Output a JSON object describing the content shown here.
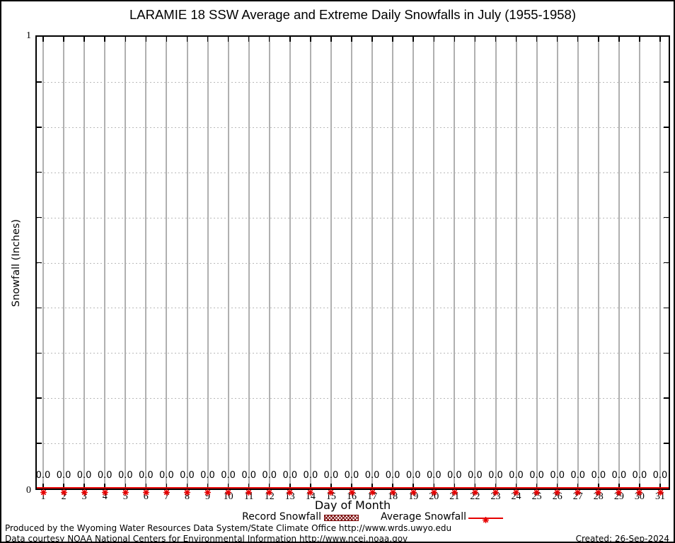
{
  "title": "LARAMIE 18 SSW Average and Extreme Daily Snowfalls in July (1955-1958)",
  "chart_data": {
    "type": "line",
    "title": "LARAMIE 18 SSW Average and Extreme Daily Snowfalls in July (1955-1958)",
    "xlabel": "Day of Month",
    "ylabel": "Snowfall (Inches)",
    "x": [
      1,
      2,
      3,
      4,
      5,
      6,
      7,
      8,
      9,
      10,
      11,
      12,
      13,
      14,
      15,
      16,
      17,
      18,
      19,
      20,
      21,
      22,
      23,
      24,
      25,
      26,
      27,
      28,
      29,
      30,
      31
    ],
    "series": [
      {
        "name": "Record Snowfall",
        "style": "hatched-box",
        "color": "#7f1010",
        "values": [
          0.0,
          0.0,
          0.0,
          0.0,
          0.0,
          0.0,
          0.0,
          0.0,
          0.0,
          0.0,
          0.0,
          0.0,
          0.0,
          0.0,
          0.0,
          0.0,
          0.0,
          0.0,
          0.0,
          0.0,
          0.0,
          0.0,
          0.0,
          0.0,
          0.0,
          0.0,
          0.0,
          0.0,
          0.0,
          0.0,
          0.0
        ]
      },
      {
        "name": "Average Snowfall",
        "style": "line-with-points",
        "color": "#e60000",
        "values": [
          0.0,
          0.0,
          0.0,
          0.0,
          0.0,
          0.0,
          0.0,
          0.0,
          0.0,
          0.0,
          0.0,
          0.0,
          0.0,
          0.0,
          0.0,
          0.0,
          0.0,
          0.0,
          0.0,
          0.0,
          0.0,
          0.0,
          0.0,
          0.0,
          0.0,
          0.0,
          0.0,
          0.0,
          0.0,
          0.0,
          0.0
        ]
      }
    ],
    "point_labels": [
      "0.0",
      "0.0",
      "0.0",
      "0.0",
      "0.0",
      "0.0",
      "0.0",
      "0.0",
      "0.0",
      "0.0",
      "0.0",
      "0.0",
      "0.0",
      "0.0",
      "0.0",
      "0.0",
      "0.0",
      "0.0",
      "0.0",
      "0.0",
      "0.0",
      "0.0",
      "0.0",
      "0.0",
      "0.0",
      "0.0",
      "0.0",
      "0.0",
      "0.0",
      "0.0",
      "0.0"
    ],
    "ylim": [
      0,
      1
    ],
    "ytick_step": 0.1,
    "y_axis_labels_shown": {
      "top": "1",
      "bottom": "0"
    },
    "grid": {
      "vertical": "solid",
      "horizontal": "dotted"
    },
    "legend_position": "bottom-center"
  },
  "legend": {
    "record_label": "Record Snowfall",
    "average_label": "Average Snowfall"
  },
  "footer": {
    "line1": "Produced by the Wyoming Water Resources Data System/State Climate Office http://www.wrds.uwyo.edu",
    "line2": "Data courtesy NOAA National Centers for Environmental Information http://www.ncei.noaa.gov",
    "created": "Created: 26-Sep-2024"
  },
  "colors": {
    "average_line": "#e60000",
    "record_box": "#7f1010",
    "vertical_grid": "#b0b0b0",
    "horizontal_grid": "#b9b9b9",
    "axis": "#000000",
    "background": "#ffffff"
  }
}
